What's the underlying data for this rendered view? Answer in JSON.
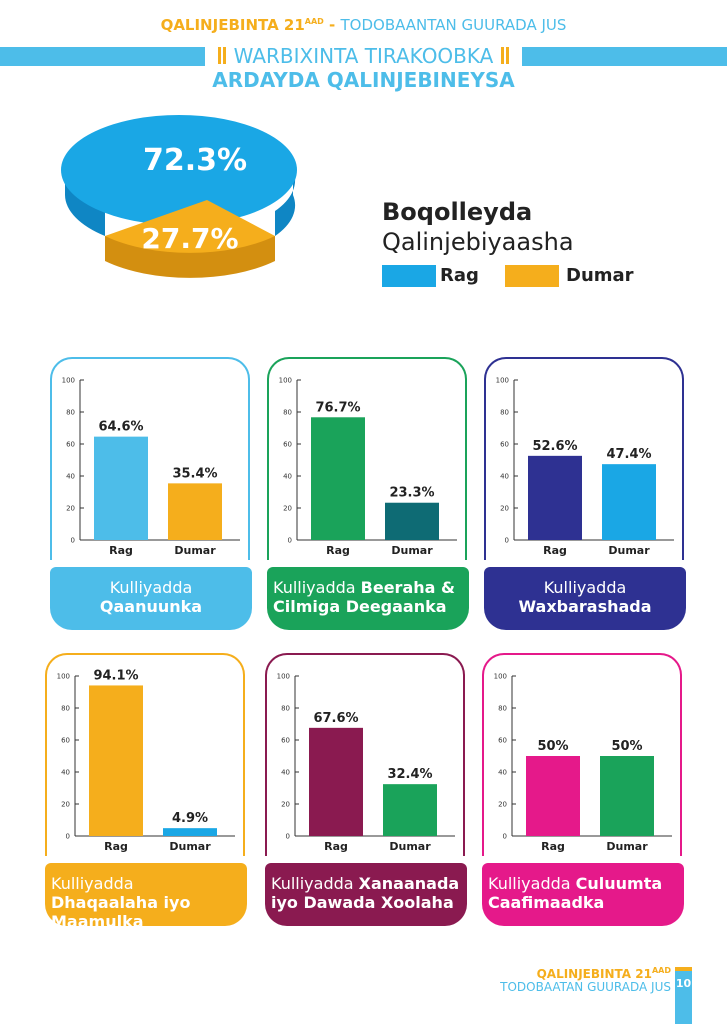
{
  "header": {
    "series_title": "QALINJEBINTA 21",
    "series_sup": "AAD",
    "dash": " - ",
    "subtitle_right": "TODOBAANTAN GUURADA JUS",
    "report_title": "WARBIXINTA TIRAKOOBKA",
    "report_subtitle": "ARDAYDA QALINJEBINEYSA"
  },
  "overall": {
    "title": "Boqolleyda",
    "subtitle": "Qalinjebiyaasha",
    "legend": [
      {
        "label": "Rag",
        "color": "#1aa7e5"
      },
      {
        "label": "Dumar",
        "color": "#f5ae1c"
      }
    ],
    "slices": [
      {
        "label": "72.3%",
        "value": 72.3
      },
      {
        "label": "27.7%",
        "value": 27.7
      }
    ]
  },
  "chart_data": [
    {
      "type": "bar",
      "title": "Kulliyadda Qaanuunka",
      "title_light": "Kulliyadda",
      "title_bold": "Qaanuunka",
      "categories": [
        "Rag",
        "Dumar"
      ],
      "values": [
        64.6,
        35.4
      ],
      "value_labels": [
        "64.6%",
        "35.4%"
      ],
      "ylim": [
        0,
        100
      ],
      "yticks": [
        "0",
        "20",
        "40",
        "60",
        "80",
        "100"
      ],
      "colors": [
        "#4dbde9",
        "#f5ae1c"
      ],
      "frame": "#4dbde9"
    },
    {
      "type": "bar",
      "title": "Kulliyadda Beeraha & Cilmiga Deegaanka",
      "title_light": "Kulliyadda",
      "title_bold": "Beeraha & Cilmiga Deegaanka",
      "categories": [
        "Rag",
        "Dumar"
      ],
      "values": [
        76.7,
        23.3
      ],
      "value_labels": [
        "76.7%",
        "23.3%"
      ],
      "ylim": [
        0,
        100
      ],
      "yticks": [
        "0",
        "20",
        "40",
        "60",
        "80",
        "100"
      ],
      "colors": [
        "#1aa35a",
        "#0e6b74"
      ],
      "frame": "#1aa35a"
    },
    {
      "type": "bar",
      "title": "Kulliyadda Waxbarashada",
      "title_light": "Kulliyadda",
      "title_bold": "Waxbarashada",
      "categories": [
        "Rag",
        "Dumar"
      ],
      "values": [
        52.6,
        47.4
      ],
      "value_labels": [
        "52.6%",
        "47.4%"
      ],
      "ylim": [
        0,
        100
      ],
      "yticks": [
        "0",
        "20",
        "40",
        "60",
        "80",
        "100"
      ],
      "colors": [
        "#2e3192",
        "#1aa7e5"
      ],
      "frame": "#2e3192"
    },
    {
      "type": "bar",
      "title": "Kulliyadda Dhaqaalaha iyo Maamulka",
      "title_light": "Kulliyadda",
      "title_bold": "Dhaqaalaha iyo Maamulka",
      "categories": [
        "Rag",
        "Dumar"
      ],
      "values": [
        94.1,
        4.9
      ],
      "value_labels": [
        "94.1%",
        "4.9%"
      ],
      "ylim": [
        0,
        100
      ],
      "yticks": [
        "0",
        "20",
        "40",
        "60",
        "80",
        "100"
      ],
      "colors": [
        "#f5ae1c",
        "#1aa7e5"
      ],
      "frame": "#f5ae1c"
    },
    {
      "type": "bar",
      "title": "Kulliyadda Xanaanada iyo Dawada Xoolaha",
      "title_light": "Kulliyadda",
      "title_bold": "Xanaanada iyo Dawada Xoolaha",
      "categories": [
        "Rag",
        "Dumar"
      ],
      "values": [
        67.6,
        32.4
      ],
      "value_labels": [
        "67.6%",
        "32.4%"
      ],
      "ylim": [
        0,
        100
      ],
      "yticks": [
        "0",
        "20",
        "40",
        "60",
        "80",
        "100"
      ],
      "colors": [
        "#8a1a50",
        "#1aa35a"
      ],
      "frame": "#8a1a50"
    },
    {
      "type": "bar",
      "title": "Kulliyadda Culuumta Caafimaadka",
      "title_light": "Kulliyadda",
      "title_bold": "Culuumta Caafimaadka",
      "categories": [
        "Rag",
        "Dumar"
      ],
      "values": [
        50,
        50
      ],
      "value_labels": [
        "50%",
        "50%"
      ],
      "ylim": [
        0,
        100
      ],
      "yticks": [
        "0",
        "20",
        "40",
        "60",
        "80",
        "100"
      ],
      "colors": [
        "#e5198a",
        "#1aa35a"
      ],
      "frame": "#e5198a"
    }
  ],
  "footer": {
    "line1": "QALINJEBINTA 21",
    "line1_sup": "AAD",
    "line2": "TODOBAATAN GUURADA JUS",
    "page_number": "10"
  }
}
